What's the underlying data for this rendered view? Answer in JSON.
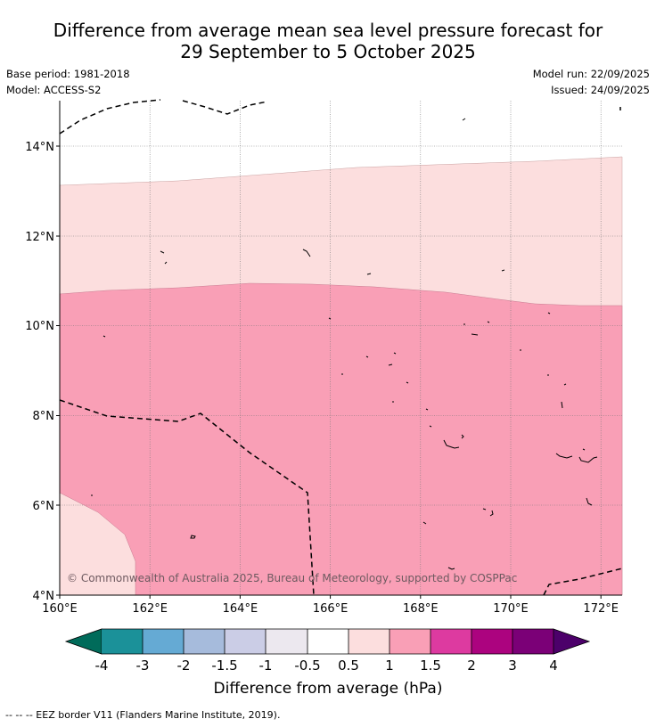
{
  "title_line1": "Difference from average mean sea level pressure forecast for",
  "title_line2": "29 September to 5 October 2025",
  "base_period": "Base period: 1981-2018",
  "model": "Model: ACCESS-S2",
  "model_run": "Model run: 22/09/2025",
  "issued": "Issued: 24/09/2025",
  "map": {
    "lon_labels": [
      "160°E",
      "162°E",
      "164°E",
      "166°E",
      "168°E",
      "170°E",
      "172°E"
    ],
    "lat_labels": [
      "14°N",
      "12°N",
      "10°N",
      "8°N",
      "6°N",
      "4°N"
    ],
    "lon_min": 160,
    "lon_max": 172.5,
    "lat_min": 4,
    "lat_max": 15,
    "copyright": "© Commonwealth of Australia 2025, Bureau of Meteorology, supported by COSPPac",
    "regions": [
      {
        "range": "below 0.5",
        "color": "#ffffff"
      },
      {
        "range": "0.5 to 1",
        "color": "#fcdede"
      },
      {
        "range": "1 to 1.5",
        "color": "#f99fb6"
      }
    ]
  },
  "colorbar": {
    "label": "Difference from average (hPa)",
    "ticks": [
      "-4",
      "-3",
      "-2",
      "-1.5",
      "-1",
      "-0.5",
      "0.5",
      "1",
      "1.5",
      "2",
      "3",
      "4"
    ],
    "colors": [
      "#006b5a",
      "#1b9199",
      "#65aad4",
      "#a6bbdc",
      "#cbcde6",
      "#ece8ef",
      "#ffffff",
      "#fcdede",
      "#f99fb6",
      "#dd3aa0",
      "#ac037f",
      "#7b0077",
      "#4c006a"
    ]
  },
  "footer": "--  --  -- EEZ border V11 (Flanders Marine Institute, 2019)."
}
